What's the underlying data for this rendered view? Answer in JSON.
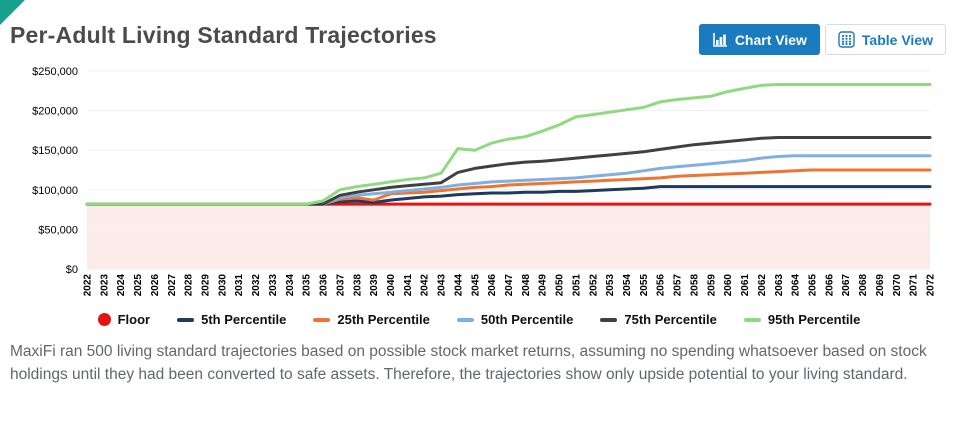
{
  "header": {
    "title": "Per-Adult Living Standard Trajectories",
    "buttons": {
      "chart_view": "Chart View",
      "table_view": "Table View"
    }
  },
  "footer": {
    "text": "MaxiFi ran 500 living standard trajectories based on possible stock market returns, assuming no spending whatsoever based on stock holdings until they had been converted to safe assets. Therefore, the trajectories show only upside potential to your living standard."
  },
  "colors": {
    "accent_blue": "#1a7bbe",
    "corner_teal": "#17a08b",
    "grid": "#f0f0f0",
    "floor_fill": "#fbecea"
  },
  "chart_data": {
    "type": "line",
    "title": "Per-Adult Living Standard Trajectories",
    "xlabel": "",
    "ylabel": "",
    "ylim": [
      0,
      250000
    ],
    "ytick_step": 50000,
    "ytick_prefix": "$",
    "grid": true,
    "legend_position": "bottom",
    "floor_value": 82000,
    "x": [
      2022,
      2023,
      2024,
      2025,
      2026,
      2027,
      2028,
      2029,
      2030,
      2031,
      2032,
      2033,
      2034,
      2035,
      2036,
      2037,
      2038,
      2039,
      2040,
      2041,
      2042,
      2043,
      2044,
      2045,
      2046,
      2047,
      2048,
      2049,
      2050,
      2051,
      2052,
      2053,
      2054,
      2055,
      2056,
      2057,
      2058,
      2059,
      2060,
      2061,
      2062,
      2063,
      2064,
      2065,
      2066,
      2067,
      2068,
      2069,
      2070,
      2071,
      2072
    ],
    "series": [
      {
        "name": "Floor",
        "color": "#e51210",
        "marker": "circle",
        "values": [
          82000,
          82000,
          82000,
          82000,
          82000,
          82000,
          82000,
          82000,
          82000,
          82000,
          82000,
          82000,
          82000,
          82000,
          82000,
          82000,
          82000,
          82000,
          82000,
          82000,
          82000,
          82000,
          82000,
          82000,
          82000,
          82000,
          82000,
          82000,
          82000,
          82000,
          82000,
          82000,
          82000,
          82000,
          82000,
          82000,
          82000,
          82000,
          82000,
          82000,
          82000,
          82000,
          82000,
          82000,
          82000,
          82000,
          82000,
          82000,
          82000,
          82000,
          82000
        ]
      },
      {
        "name": "5th Percentile",
        "color": "#1f3a5f",
        "marker": "line",
        "values": [
          82000,
          82000,
          82000,
          82000,
          82000,
          82000,
          82000,
          82000,
          82000,
          82000,
          82000,
          82000,
          82000,
          82000,
          82000,
          85000,
          86000,
          84000,
          87000,
          89000,
          91000,
          92000,
          94000,
          95000,
          96000,
          96000,
          97000,
          97000,
          98000,
          98000,
          99000,
          100000,
          101000,
          102000,
          104000,
          104000,
          104000,
          104000,
          104000,
          104000,
          104000,
          104000,
          104000,
          104000,
          104000,
          104000,
          104000,
          104000,
          104000,
          104000,
          104000
        ]
      },
      {
        "name": "25th Percentile",
        "color": "#ed7531",
        "marker": "line",
        "values": [
          82000,
          82000,
          82000,
          82000,
          82000,
          82000,
          82000,
          82000,
          82000,
          82000,
          82000,
          82000,
          82000,
          82000,
          82000,
          88000,
          90000,
          87000,
          95000,
          96000,
          97000,
          99000,
          101000,
          103000,
          104000,
          106000,
          107000,
          108000,
          109000,
          110000,
          111000,
          112000,
          113000,
          114000,
          115000,
          117000,
          118000,
          119000,
          120000,
          121000,
          122000,
          123000,
          124000,
          125000,
          125000,
          125000,
          125000,
          125000,
          125000,
          125000,
          125000
        ]
      },
      {
        "name": "50th Percentile",
        "color": "#7fb0e0",
        "marker": "line",
        "values": [
          82000,
          82000,
          82000,
          82000,
          82000,
          82000,
          82000,
          82000,
          82000,
          82000,
          82000,
          82000,
          82000,
          82000,
          82000,
          90000,
          93000,
          95000,
          97000,
          99000,
          101000,
          103000,
          106000,
          108000,
          110000,
          111000,
          112000,
          113000,
          114000,
          115000,
          117000,
          119000,
          121000,
          124000,
          127000,
          129000,
          131000,
          133000,
          135000,
          137000,
          140000,
          142000,
          143000,
          143000,
          143000,
          143000,
          143000,
          143000,
          143000,
          143000,
          143000
        ]
      },
      {
        "name": "75th Percentile",
        "color": "#404040",
        "marker": "line",
        "values": [
          82000,
          82000,
          82000,
          82000,
          82000,
          82000,
          82000,
          82000,
          82000,
          82000,
          82000,
          82000,
          82000,
          82000,
          82000,
          93000,
          97000,
          100000,
          103000,
          105000,
          107000,
          109000,
          122000,
          127000,
          130000,
          133000,
          135000,
          136000,
          138000,
          140000,
          142000,
          144000,
          146000,
          148000,
          151000,
          154000,
          157000,
          159000,
          161000,
          163000,
          165000,
          166000,
          166000,
          166000,
          166000,
          166000,
          166000,
          166000,
          166000,
          166000,
          166000
        ]
      },
      {
        "name": "95th Percentile",
        "color": "#90d981",
        "marker": "line",
        "values": [
          82000,
          82000,
          82000,
          82000,
          82000,
          82000,
          82000,
          82000,
          82000,
          82000,
          82000,
          82000,
          82000,
          82000,
          86000,
          100000,
          104000,
          107000,
          110000,
          113000,
          115000,
          121000,
          152000,
          150000,
          159000,
          164000,
          167000,
          174000,
          182000,
          192000,
          195000,
          198000,
          201000,
          204000,
          211000,
          214000,
          216000,
          218000,
          224000,
          228000,
          232000,
          233000,
          233000,
          233000,
          233000,
          233000,
          233000,
          233000,
          233000,
          233000,
          233000
        ]
      }
    ]
  }
}
